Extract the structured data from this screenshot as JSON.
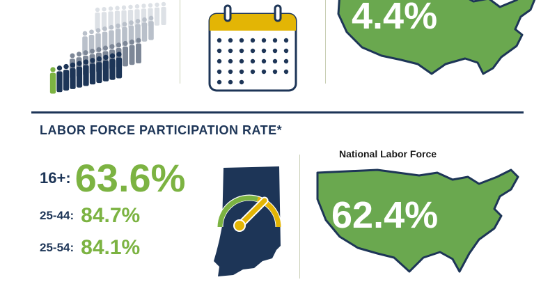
{
  "top": {
    "unemployment_value": "4.4%"
  },
  "section": {
    "title": "LABOR FORCE PARTICIPATION RATE*"
  },
  "indiana": {
    "rows": [
      {
        "label": "16+:",
        "value": "63.6%"
      },
      {
        "label": "25-44:",
        "value": "84.7%"
      },
      {
        "label": "25-54:",
        "value": "84.1%"
      }
    ]
  },
  "national": {
    "label": "National Labor Force",
    "value": "62.4%"
  },
  "colors": {
    "navy": "#1d3557",
    "green": "#7cb342",
    "map_green": "#6aa84f",
    "gold": "#e3b505",
    "divider": "#c9cfb5"
  },
  "icons": {
    "people": "crowd-people-icon",
    "calendar": "calendar-icon",
    "us_map": "us-map-icon",
    "indiana": "indiana-state-icon",
    "gauge": "gauge-icon"
  }
}
